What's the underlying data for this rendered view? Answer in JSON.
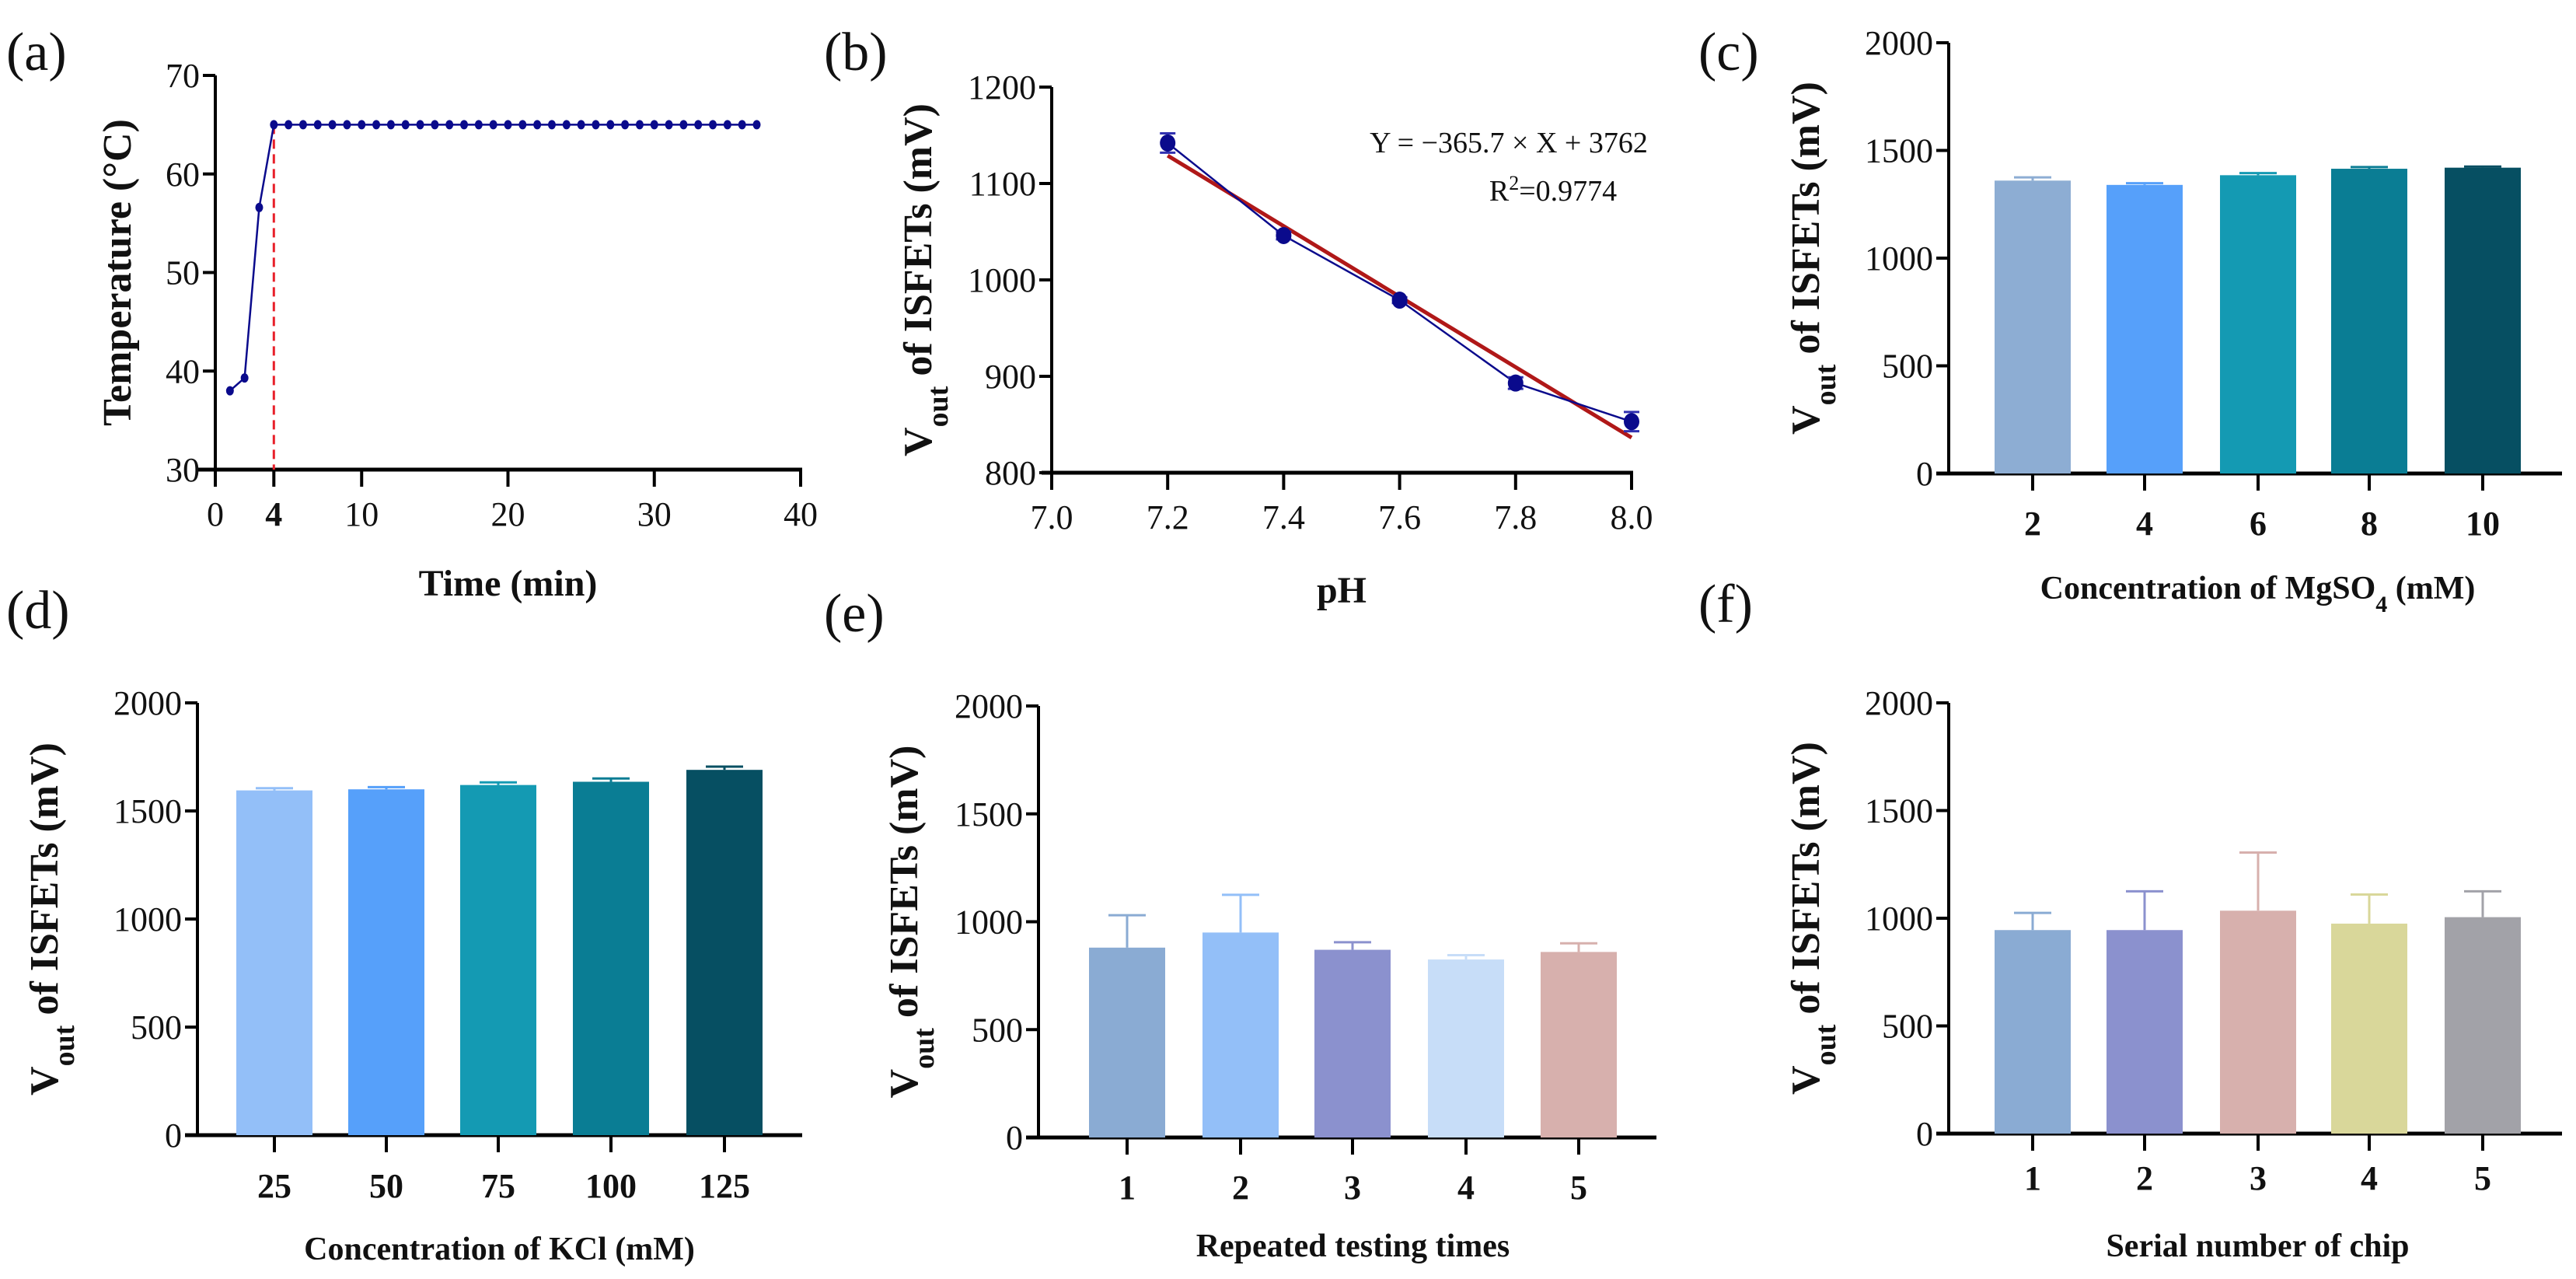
{
  "chart_data": [
    {
      "panel": "(a)",
      "type": "line",
      "xlabel": "Time (min)",
      "ylabel": "Temperature (°C)",
      "xlim": [
        0,
        40
      ],
      "ylim": [
        30,
        70
      ],
      "xticks": [
        "0",
        "4",
        "10",
        "20",
        "30",
        "40"
      ],
      "xtick_values": [
        0,
        4,
        10,
        20,
        30,
        40
      ],
      "yticks": [
        "30",
        "40",
        "50",
        "60",
        "70"
      ],
      "ytick_values": [
        30,
        40,
        50,
        60,
        70
      ],
      "vline": {
        "x": 4,
        "color": "#E8202A",
        "style": "dashed"
      },
      "series": [
        {
          "name": "Temperature",
          "color": "#0A0A8C",
          "x": [
            1,
            2,
            3,
            4,
            5,
            6,
            7,
            8,
            9,
            10,
            11,
            12,
            13,
            14,
            15,
            16,
            17,
            18,
            19,
            20,
            21,
            22,
            23,
            24,
            25,
            26,
            27,
            28,
            29,
            30,
            31,
            32,
            33,
            34,
            35,
            36,
            37
          ],
          "y": [
            38,
            39.3,
            56.6,
            65,
            65,
            65,
            65,
            65,
            65,
            65,
            65,
            65,
            65,
            65,
            65,
            65,
            65,
            65,
            65,
            65,
            65,
            65,
            65,
            65,
            65,
            65,
            65,
            65,
            65,
            65,
            65,
            65,
            65,
            65,
            65,
            65,
            65
          ]
        }
      ]
    },
    {
      "panel": "(b)",
      "type": "scatter",
      "xlabel": "pH",
      "ylabel_main": "V",
      "ylabel_sub": "out",
      "ylabel_rest": " of ISFETs (mV)",
      "xlim": [
        7.0,
        8.0
      ],
      "ylim": [
        800,
        1200
      ],
      "xticks": [
        "7.0",
        "7.2",
        "7.4",
        "7.6",
        "7.8",
        "8.0"
      ],
      "xtick_values": [
        7.0,
        7.2,
        7.4,
        7.6,
        7.8,
        8.0
      ],
      "yticks": [
        "800",
        "900",
        "1000",
        "1100",
        "1200"
      ],
      "ytick_values": [
        800,
        900,
        1000,
        1100,
        1200
      ],
      "series": [
        {
          "name": "Vout",
          "color": "#0A0A8C",
          "x": [
            7.2,
            7.4,
            7.6,
            7.8,
            8.0
          ],
          "y": [
            1142,
            1046,
            979,
            893,
            853
          ],
          "err": [
            10,
            4,
            3,
            6,
            10
          ]
        }
      ],
      "fit": {
        "slope": -365.7,
        "intercept": 3762,
        "color": "#B01818",
        "x_range": [
          7.2,
          8.0
        ]
      },
      "annotation_eq": "Y = −365.7 × X + 3762",
      "annotation_r2_prefix": "R",
      "annotation_r2_sup": "2",
      "annotation_r2_value": "=0.9774"
    },
    {
      "panel": "(c)",
      "type": "bar",
      "xlabel_main": "Concentration of MgSO",
      "xlabel_sub": "4",
      "xlabel_rest": " (mM)",
      "ylabel_main": "V",
      "ylabel_sub": "out",
      "ylabel_rest": " of ISFETs (mV)",
      "ylim": [
        0,
        2000
      ],
      "yticks": [
        "0",
        "500",
        "1000",
        "1500",
        "2000"
      ],
      "ytick_values": [
        0,
        500,
        1000,
        1500,
        2000
      ],
      "categories": [
        "2",
        "4",
        "6",
        "8",
        "10"
      ],
      "values": [
        1360,
        1340,
        1385,
        1415,
        1420
      ],
      "errors": [
        15,
        8,
        10,
        8,
        5
      ],
      "colors": [
        "#8DADD3",
        "#56A0FA",
        "#149AB3",
        "#0A7D94",
        "#064F62"
      ]
    },
    {
      "panel": "(d)",
      "type": "bar",
      "xlabel": "Concentration of KCl (mM)",
      "ylabel_main": "V",
      "ylabel_sub": "out",
      "ylabel_rest": " of ISFETs (mV)",
      "ylim": [
        0,
        2000
      ],
      "yticks": [
        "0",
        "500",
        "1000",
        "1500",
        "2000"
      ],
      "ytick_values": [
        0,
        500,
        1000,
        1500,
        2000
      ],
      "categories": [
        "25",
        "50",
        "75",
        "100",
        "125"
      ],
      "values": [
        1595,
        1600,
        1620,
        1635,
        1690
      ],
      "errors": [
        10,
        10,
        12,
        15,
        15
      ],
      "colors": [
        "#93BFF8",
        "#56A0FA",
        "#149AB3",
        "#0A7D94",
        "#064F62"
      ]
    },
    {
      "panel": "(e)",
      "type": "bar",
      "xlabel": "Repeated testing times",
      "ylabel_main": "V",
      "ylabel_sub": "out",
      "ylabel_rest": " of ISFETs (mV)",
      "ylim": [
        0,
        2000
      ],
      "yticks": [
        "0",
        "500",
        "1000",
        "1500",
        "2000"
      ],
      "ytick_values": [
        0,
        500,
        1000,
        1500,
        2000
      ],
      "categories": [
        "1",
        "2",
        "3",
        "4",
        "5"
      ],
      "values": [
        880,
        950,
        870,
        825,
        860
      ],
      "errors": [
        150,
        175,
        35,
        20,
        40
      ],
      "colors": [
        "#8AABD3",
        "#93BFF8",
        "#8B91CE",
        "#C7DDF8",
        "#D7B0AD"
      ]
    },
    {
      "panel": "(f)",
      "type": "bar",
      "xlabel": "Serial number of chip",
      "ylabel_main": "V",
      "ylabel_sub": "out",
      "ylabel_rest": " of ISFETs (mV)",
      "ylim": [
        0,
        2000
      ],
      "yticks": [
        "0",
        "500",
        "1000",
        "1500",
        "2000"
      ],
      "ytick_values": [
        0,
        500,
        1000,
        1500,
        2000
      ],
      "categories": [
        "1",
        "2",
        "3",
        "4",
        "5"
      ],
      "values": [
        945,
        945,
        1035,
        975,
        1005
      ],
      "errors": [
        80,
        180,
        270,
        135,
        120
      ],
      "colors": [
        "#8AABD3",
        "#8B91CE",
        "#D7B0AD",
        "#D9D79A",
        "#A2A2A8"
      ]
    }
  ]
}
